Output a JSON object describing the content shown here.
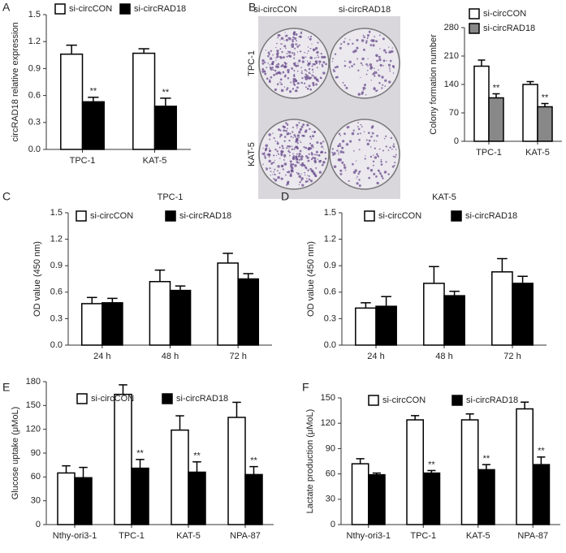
{
  "chart_data": [
    {
      "type": "bar",
      "panel": "A",
      "ylabel": "circRAD18 relative expression",
      "categories": [
        "TPC-1",
        "KAT-5"
      ],
      "ylim": [
        0,
        1.5
      ],
      "yticks": [
        {
          "value": 0,
          "label": "0.0"
        },
        0.3,
        0.6,
        0.9,
        1.2,
        1.5
      ],
      "legend": "top",
      "series": [
        {
          "name": "si-circCON",
          "color": "#ffffff",
          "values": [
            1.06,
            1.07
          ],
          "errors": [
            0.1,
            0.05
          ]
        },
        {
          "name": "si-circRAD18",
          "color": "#000000",
          "values": [
            0.53,
            0.48
          ],
          "errors": [
            0.05,
            0.09
          ],
          "significance": [
            "**",
            "**"
          ]
        }
      ]
    },
    {
      "type": "bar",
      "panel": "B",
      "ylabel": "Colony formation number",
      "categories": [
        "TPC-1",
        "KAT-5"
      ],
      "ylim": [
        0,
        280
      ],
      "yticks": [
        0,
        70,
        140,
        210,
        280
      ],
      "legend": "right",
      "series": [
        {
          "name": "si-circCON",
          "color": "#ffffff",
          "values": [
            185,
            140
          ],
          "errors": [
            15,
            7
          ]
        },
        {
          "name": "si-circRAD18",
          "color": "#888888",
          "values": [
            107,
            85
          ],
          "errors": [
            10,
            8
          ],
          "significance": [
            "**",
            "**"
          ]
        }
      ]
    },
    {
      "type": "bar",
      "panel": "C",
      "title": "TPC-1",
      "ylabel": "OD value (450 nm)",
      "categories": [
        "24 h",
        "48 h",
        "72 h"
      ],
      "ylim": [
        0,
        1.5
      ],
      "yticks": [
        {
          "value": 0,
          "label": "0.0"
        },
        0.3,
        0.6,
        0.9,
        1.2,
        1.5
      ],
      "legend": "top",
      "series": [
        {
          "name": "si-circCON",
          "color": "#ffffff",
          "values": [
            0.47,
            0.72,
            0.93
          ],
          "errors": [
            0.07,
            0.13,
            0.11
          ]
        },
        {
          "name": "si-circRAD18",
          "color": "#000000",
          "values": [
            0.48,
            0.62,
            0.75
          ],
          "errors": [
            0.05,
            0.05,
            0.06
          ]
        }
      ]
    },
    {
      "type": "bar",
      "panel": "D",
      "title": "KAT-5",
      "ylabel": "OD value (450 nm)",
      "categories": [
        "24 h",
        "48 h",
        "72 h"
      ],
      "ylim": [
        0,
        1.5
      ],
      "yticks": [
        {
          "value": 0,
          "label": "0.0"
        },
        0.3,
        0.6,
        0.9,
        1.2,
        1.5
      ],
      "legend": "top",
      "series": [
        {
          "name": "si-circCON",
          "color": "#ffffff",
          "values": [
            0.42,
            0.7,
            0.83
          ],
          "errors": [
            0.06,
            0.19,
            0.15
          ]
        },
        {
          "name": "si-circRAD18",
          "color": "#000000",
          "values": [
            0.44,
            0.56,
            0.7
          ],
          "errors": [
            0.11,
            0.05,
            0.08
          ]
        }
      ]
    },
    {
      "type": "bar",
      "panel": "E",
      "ylabel": "Glucose uptake (μMoL)",
      "categories": [
        "Nthy-ori3-1",
        "TPC-1",
        "KAT-5",
        "NPA-87"
      ],
      "ylim": [
        0,
        180
      ],
      "yticks": [
        0,
        30,
        60,
        90,
        120,
        150,
        180
      ],
      "legend": "top",
      "series": [
        {
          "name": "si-circCON",
          "color": "#ffffff",
          "values": [
            65,
            164,
            119,
            135
          ],
          "errors": [
            9,
            12,
            18,
            19
          ]
        },
        {
          "name": "si-circRAD18",
          "color": "#000000",
          "values": [
            59,
            71,
            66,
            63
          ],
          "errors": [
            13,
            11,
            13,
            10
          ],
          "significance": [
            null,
            "**",
            "**",
            "**"
          ]
        }
      ]
    },
    {
      "type": "bar",
      "panel": "F",
      "ylabel": "Lactate production (μMoL)",
      "categories": [
        "Nthy-ori3-1",
        "TPC-1",
        "KAT-5",
        "NPA-87"
      ],
      "ylim": [
        0,
        150
      ],
      "yticks": [
        0,
        30,
        60,
        90,
        120,
        150
      ],
      "legend": "top",
      "series": [
        {
          "name": "si-circCON",
          "color": "#ffffff",
          "values": [
            72,
            124,
            124,
            137
          ],
          "errors": [
            6,
            5,
            7,
            8
          ]
        },
        {
          "name": "si-circRAD18",
          "color": "#000000",
          "values": [
            59,
            61,
            65,
            71
          ],
          "errors": [
            2,
            3,
            6,
            9
          ],
          "significance": [
            null,
            "**",
            "**",
            "**"
          ]
        }
      ]
    }
  ],
  "photo": {
    "columns": [
      "si-circCON",
      "si-circRAD18"
    ],
    "rows": [
      "TPC-1",
      "KAT-5"
    ]
  }
}
